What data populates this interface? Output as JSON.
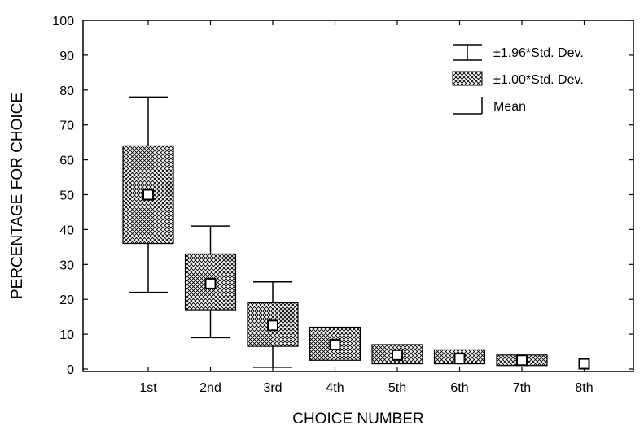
{
  "chart_data": {
    "type": "box",
    "title": "",
    "xlabel": "CHOICE NUMBER",
    "ylabel": "PERCENTAGE FOR CHOICE",
    "ylim": [
      0,
      100
    ],
    "yticks": [
      0,
      10,
      20,
      30,
      40,
      50,
      60,
      70,
      80,
      90,
      100
    ],
    "categories": [
      "1st",
      "2nd",
      "3rd",
      "4th",
      "5th",
      "6th",
      "7th",
      "8th"
    ],
    "mean": [
      50,
      24.5,
      12.5,
      7,
      4,
      3,
      2.5,
      1.5
    ],
    "box_low": [
      36,
      17,
      6.5,
      2.5,
      1.5,
      1.5,
      1,
      1.5
    ],
    "box_high": [
      64,
      33,
      19,
      12,
      7,
      5.5,
      4,
      1.5
    ],
    "whisker_low": [
      22,
      9,
      0.5,
      2.5,
      1.5,
      1.5,
      1,
      1.5
    ],
    "whisker_high": [
      78,
      41,
      25,
      12,
      7,
      5.5,
      4,
      1.5
    ],
    "grid": false,
    "legend_position": "top-right",
    "legend": [
      {
        "symbol": "whisker",
        "label": "±1.96*Std. Dev."
      },
      {
        "symbol": "box",
        "label": "±1.00*Std. Dev."
      },
      {
        "symbol": "mean",
        "label": "Mean"
      }
    ]
  }
}
